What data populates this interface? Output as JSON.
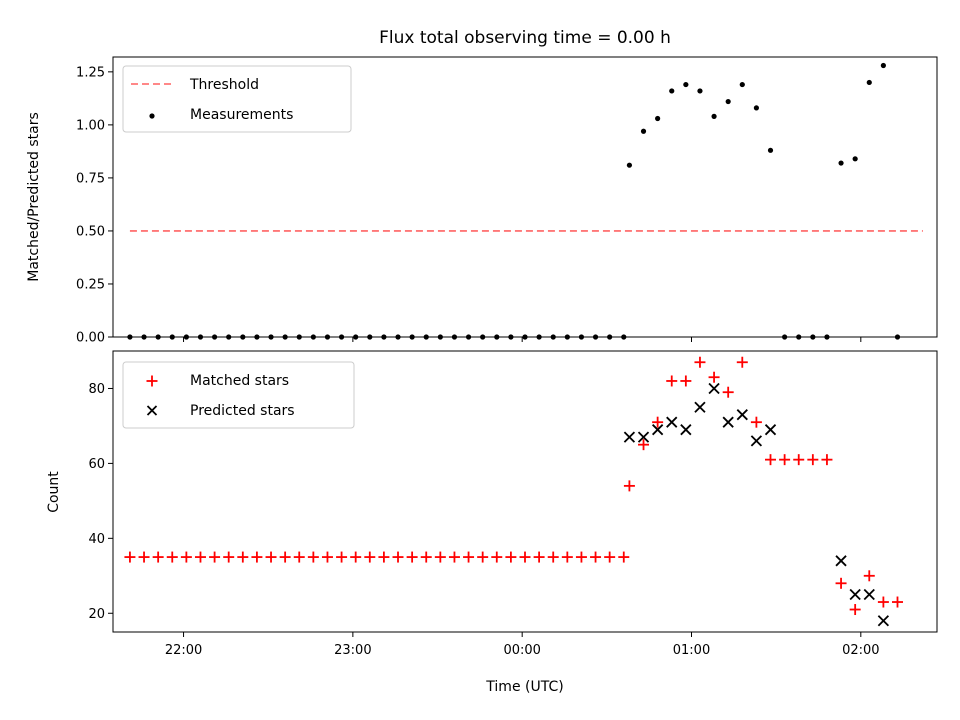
{
  "chart_data": [
    {
      "type": "scatter",
      "title": "Flux total observing time = 0.00 h",
      "xlabel": "",
      "ylabel": "Matched/Predicted stars",
      "ylim": [
        0,
        1.32
      ],
      "yticks": [
        0.0,
        0.25,
        0.5,
        0.75,
        1.0,
        1.25
      ],
      "ytick_labels": [
        "0.00",
        "0.25",
        "0.50",
        "0.75",
        "1.00",
        "1.25"
      ],
      "xlim": [
        "21:35",
        "02:27"
      ],
      "xticks": [
        "22:00",
        "23:00",
        "00:00",
        "01:00",
        "02:00"
      ],
      "legend_position": "upper-left",
      "threshold": {
        "name": "Threshold",
        "color": "#ff7777",
        "style": "dashed",
        "value": 0.5,
        "x_range": [
          "21:41",
          "02:22"
        ]
      },
      "series": [
        {
          "name": "Measurements",
          "color": "#000000",
          "marker": "dot",
          "points": [
            [
              "21:41",
              0
            ],
            [
              "21:46",
              0
            ],
            [
              "21:51",
              0
            ],
            [
              "21:56",
              0
            ],
            [
              "22:01",
              0
            ],
            [
              "22:06",
              0
            ],
            [
              "22:11",
              0
            ],
            [
              "22:16",
              0
            ],
            [
              "22:21",
              0
            ],
            [
              "22:26",
              0
            ],
            [
              "22:31",
              0
            ],
            [
              "22:36",
              0
            ],
            [
              "22:41",
              0
            ],
            [
              "22:46",
              0
            ],
            [
              "22:51",
              0
            ],
            [
              "22:56",
              0
            ],
            [
              "23:01",
              0
            ],
            [
              "23:06",
              0
            ],
            [
              "23:11",
              0
            ],
            [
              "23:16",
              0
            ],
            [
              "23:21",
              0
            ],
            [
              "23:26",
              0
            ],
            [
              "23:31",
              0
            ],
            [
              "23:36",
              0
            ],
            [
              "23:41",
              0
            ],
            [
              "23:46",
              0
            ],
            [
              "23:51",
              0
            ],
            [
              "23:56",
              0
            ],
            [
              "00:01",
              0
            ],
            [
              "00:06",
              0
            ],
            [
              "00:11",
              0
            ],
            [
              "00:16",
              0
            ],
            [
              "00:21",
              0
            ],
            [
              "00:26",
              0
            ],
            [
              "00:31",
              0
            ],
            [
              "00:36",
              0
            ],
            [
              "00:38",
              0.81
            ],
            [
              "00:43",
              0.97
            ],
            [
              "00:48",
              1.03
            ],
            [
              "00:53",
              1.16
            ],
            [
              "00:58",
              1.19
            ],
            [
              "01:03",
              1.16
            ],
            [
              "01:08",
              1.04
            ],
            [
              "01:13",
              1.11
            ],
            [
              "01:18",
              1.19
            ],
            [
              "01:23",
              1.08
            ],
            [
              "01:28",
              0.88
            ],
            [
              "01:33",
              0
            ],
            [
              "01:38",
              0
            ],
            [
              "01:43",
              0
            ],
            [
              "01:48",
              0
            ],
            [
              "01:53",
              0.82
            ],
            [
              "01:58",
              0.84
            ],
            [
              "02:03",
              1.2
            ],
            [
              "02:08",
              1.28
            ],
            [
              "02:13",
              0
            ]
          ]
        }
      ]
    },
    {
      "type": "scatter",
      "title": "",
      "xlabel": "Time (UTC)",
      "ylabel": "Count",
      "ylim": [
        15,
        90
      ],
      "yticks": [
        20,
        40,
        60,
        80
      ],
      "ytick_labels": [
        "20",
        "40",
        "60",
        "80"
      ],
      "xlim": [
        "21:35",
        "02:27"
      ],
      "xticks": [
        "22:00",
        "23:00",
        "00:00",
        "01:00",
        "02:00"
      ],
      "xtick_labels": [
        "22:00",
        "23:00",
        "00:00",
        "01:00",
        "02:00"
      ],
      "legend_position": "upper-left",
      "series": [
        {
          "name": "Matched stars",
          "color": "#ff0000",
          "marker": "plus",
          "points": [
            [
              "21:41",
              35
            ],
            [
              "21:46",
              35
            ],
            [
              "21:51",
              35
            ],
            [
              "21:56",
              35
            ],
            [
              "22:01",
              35
            ],
            [
              "22:06",
              35
            ],
            [
              "22:11",
              35
            ],
            [
              "22:16",
              35
            ],
            [
              "22:21",
              35
            ],
            [
              "22:26",
              35
            ],
            [
              "22:31",
              35
            ],
            [
              "22:36",
              35
            ],
            [
              "22:41",
              35
            ],
            [
              "22:46",
              35
            ],
            [
              "22:51",
              35
            ],
            [
              "22:56",
              35
            ],
            [
              "23:01",
              35
            ],
            [
              "23:06",
              35
            ],
            [
              "23:11",
              35
            ],
            [
              "23:16",
              35
            ],
            [
              "23:21",
              35
            ],
            [
              "23:26",
              35
            ],
            [
              "23:31",
              35
            ],
            [
              "23:36",
              35
            ],
            [
              "23:41",
              35
            ],
            [
              "23:46",
              35
            ],
            [
              "23:51",
              35
            ],
            [
              "23:56",
              35
            ],
            [
              "00:01",
              35
            ],
            [
              "00:06",
              35
            ],
            [
              "00:11",
              35
            ],
            [
              "00:16",
              35
            ],
            [
              "00:21",
              35
            ],
            [
              "00:26",
              35
            ],
            [
              "00:31",
              35
            ],
            [
              "00:36",
              35
            ],
            [
              "00:38",
              54
            ],
            [
              "00:43",
              65
            ],
            [
              "00:48",
              71
            ],
            [
              "00:53",
              82
            ],
            [
              "00:58",
              82
            ],
            [
              "01:03",
              87
            ],
            [
              "01:08",
              83
            ],
            [
              "01:13",
              79
            ],
            [
              "01:18",
              87
            ],
            [
              "01:23",
              71
            ],
            [
              "01:28",
              61
            ],
            [
              "01:33",
              61
            ],
            [
              "01:38",
              61
            ],
            [
              "01:43",
              61
            ],
            [
              "01:48",
              61
            ],
            [
              "01:53",
              28
            ],
            [
              "01:58",
              21
            ],
            [
              "02:03",
              30
            ],
            [
              "02:08",
              23
            ],
            [
              "02:13",
              23
            ]
          ]
        },
        {
          "name": "Predicted stars",
          "color": "#000000",
          "marker": "x",
          "points": [
            [
              "00:38",
              67
            ],
            [
              "00:43",
              67
            ],
            [
              "00:48",
              69
            ],
            [
              "00:53",
              71
            ],
            [
              "00:58",
              69
            ],
            [
              "01:03",
              75
            ],
            [
              "01:08",
              80
            ],
            [
              "01:13",
              71
            ],
            [
              "01:18",
              73
            ],
            [
              "01:23",
              66
            ],
            [
              "01:28",
              69
            ],
            [
              "01:53",
              34
            ],
            [
              "01:58",
              25
            ],
            [
              "02:03",
              25
            ],
            [
              "02:08",
              18
            ]
          ]
        }
      ]
    }
  ]
}
